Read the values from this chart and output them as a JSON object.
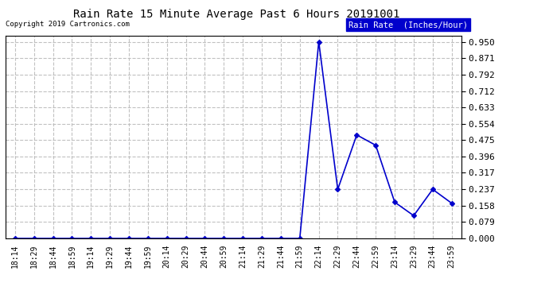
{
  "title": "Rain Rate 15 Minute Average Past 6 Hours 20191001",
  "copyright": "Copyright 2019 Cartronics.com",
  "legend_label": "Rain Rate  (Inches/Hour)",
  "line_color": "#0000CC",
  "background_color": "#ffffff",
  "grid_color": "#bbbbbb",
  "x_labels": [
    "18:14",
    "18:29",
    "18:44",
    "18:59",
    "19:14",
    "19:29",
    "19:44",
    "19:59",
    "20:14",
    "20:29",
    "20:44",
    "20:59",
    "21:14",
    "21:29",
    "21:44",
    "21:59",
    "22:14",
    "22:29",
    "22:44",
    "22:59",
    "23:14",
    "23:29",
    "23:44",
    "23:59"
  ],
  "y_values": [
    0.0,
    0.0,
    0.0,
    0.0,
    0.0,
    0.0,
    0.0,
    0.0,
    0.0,
    0.0,
    0.0,
    0.0,
    0.0,
    0.0,
    0.0,
    0.0,
    0.95,
    0.237,
    0.5,
    0.45,
    0.175,
    0.11,
    0.237,
    0.17
  ],
  "yticks": [
    0.0,
    0.079,
    0.158,
    0.237,
    0.317,
    0.396,
    0.475,
    0.554,
    0.633,
    0.712,
    0.792,
    0.871,
    0.95
  ],
  "ylim": [
    0.0,
    0.979
  ],
  "marker": "D",
  "markersize": 3,
  "linewidth": 1.2
}
